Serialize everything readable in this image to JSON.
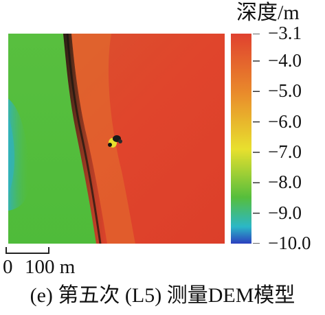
{
  "legend": {
    "title": "深度/m",
    "ticks": [
      "−3.1",
      "−4.0",
      "−5.0",
      "−6.0",
      "−7.0",
      "−8.0",
      "−9.0",
      "−10.0"
    ],
    "tick_values": [
      -3.1,
      -4.0,
      -5.0,
      -6.0,
      -7.0,
      -8.0,
      -9.0,
      -10.0
    ]
  },
  "scale_bar": {
    "label_start": "0",
    "label_end": "100 m"
  },
  "caption": "(e) 第五次 (L5) 测量DEM模型",
  "chart_data": {
    "type": "heatmap",
    "title": "",
    "colorbar_label": "深度/m",
    "value_range": [
      -10.0,
      -3.1
    ],
    "colormap": [
      "#2b3fbf",
      "#2bb7c7",
      "#56be3c",
      "#e8e02e",
      "#e98a2b",
      "#e0412f"
    ],
    "regions": [
      {
        "name": "west shallow shelf (green/cyan)",
        "depth_min": -10.0,
        "depth_max": -8.0
      },
      {
        "name": "east deep area (red/orange)",
        "depth_min": -4.5,
        "depth_max": -3.1
      },
      {
        "name": "small object near center",
        "depth_min": -7.0,
        "depth_max": -6.0
      }
    ]
  },
  "colors": {
    "red": "#df4a2e",
    "green": "#56be3c",
    "cyan": "#39b6b6",
    "blue": "#2b3fbf",
    "yellow": "#e8e02e"
  }
}
